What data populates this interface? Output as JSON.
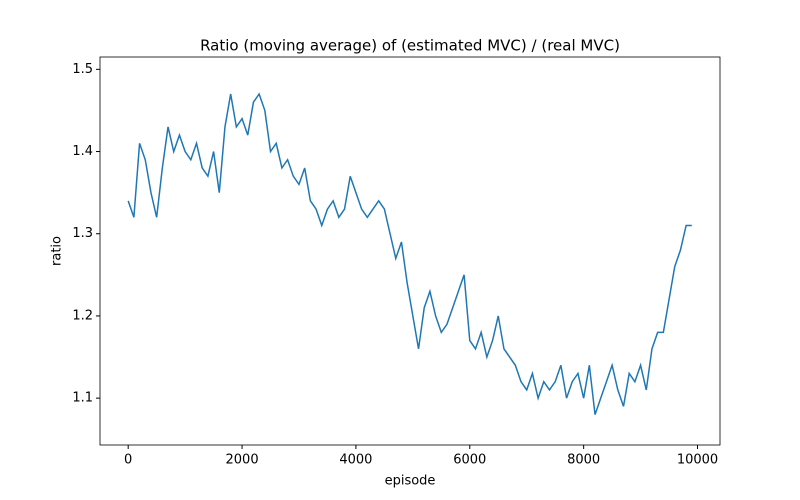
{
  "chart_data": {
    "type": "line",
    "title": "Ratio (moving average) of (estimated MVC) / (real MVC)",
    "x_label": "episode",
    "y_label": "ratio",
    "x": [
      0,
      100,
      200,
      300,
      400,
      500,
      600,
      700,
      800,
      900,
      1000,
      1100,
      1200,
      1300,
      1400,
      1500,
      1600,
      1700,
      1800,
      1900,
      2000,
      2100,
      2200,
      2300,
      2400,
      2500,
      2600,
      2700,
      2800,
      2900,
      3000,
      3100,
      3200,
      3300,
      3400,
      3500,
      3600,
      3700,
      3800,
      3900,
      4000,
      4100,
      4200,
      4300,
      4400,
      4500,
      4600,
      4700,
      4800,
      4900,
      5000,
      5100,
      5200,
      5300,
      5400,
      5500,
      5600,
      5700,
      5800,
      5900,
      6000,
      6100,
      6200,
      6300,
      6400,
      6500,
      6600,
      6700,
      6800,
      6900,
      7000,
      7100,
      7200,
      7300,
      7400,
      7500,
      7600,
      7700,
      7800,
      7900,
      8000,
      8100,
      8200,
      8300,
      8400,
      8500,
      8600,
      8700,
      8800,
      8900,
      9000,
      9100,
      9200,
      9300,
      9400,
      9500,
      9600,
      9700,
      9800,
      9900
    ],
    "series": [
      {
        "color": "#1f77b4",
        "values": [
          1.34,
          1.32,
          1.41,
          1.39,
          1.35,
          1.32,
          1.38,
          1.43,
          1.4,
          1.42,
          1.4,
          1.39,
          1.41,
          1.38,
          1.37,
          1.4,
          1.35,
          1.43,
          1.47,
          1.43,
          1.44,
          1.42,
          1.46,
          1.47,
          1.45,
          1.4,
          1.41,
          1.38,
          1.39,
          1.37,
          1.36,
          1.38,
          1.34,
          1.33,
          1.31,
          1.33,
          1.34,
          1.32,
          1.33,
          1.37,
          1.35,
          1.33,
          1.32,
          1.33,
          1.34,
          1.33,
          1.3,
          1.27,
          1.29,
          1.24,
          1.2,
          1.16,
          1.21,
          1.23,
          1.2,
          1.18,
          1.19,
          1.21,
          1.23,
          1.25,
          1.17,
          1.16,
          1.18,
          1.15,
          1.17,
          1.2,
          1.16,
          1.15,
          1.14,
          1.12,
          1.11,
          1.13,
          1.1,
          1.12,
          1.11,
          1.12,
          1.14,
          1.1,
          1.12,
          1.13,
          1.1,
          1.14,
          1.08,
          1.1,
          1.12,
          1.14,
          1.11,
          1.09,
          1.13,
          1.12,
          1.14,
          1.11,
          1.16,
          1.18,
          1.18,
          1.22,
          1.26,
          1.28,
          1.31,
          1.31
        ]
      }
    ],
    "xlim": [
      -495,
      10395
    ],
    "xticks": [
      0,
      2000,
      4000,
      6000,
      8000,
      10000
    ],
    "ylim": [
      1.043,
      1.515
    ],
    "yticks": [
      1.1,
      1.2,
      1.3,
      1.4,
      1.5
    ],
    "grid": false
  }
}
